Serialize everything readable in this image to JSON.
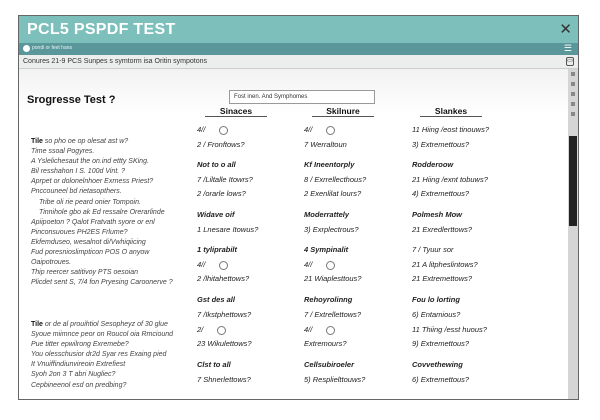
{
  "window": {
    "title": "PCL5 PSPDF TEST",
    "close_icon": "close-icon",
    "subbar_label": "pondi or feet hans",
    "menu_icon": "hamburger-icon"
  },
  "breadcrumb": {
    "text": "Conures 21-9 PCS Sunpes s symtorm isa Oritin sympotons",
    "icon": "save-icon"
  },
  "page": {
    "title": "Srogresse Test ?",
    "search_value": "Fost inen. And Symphomes"
  },
  "intro": {
    "lead": "Tile",
    "lines": [
      "so pho oe op olesat ast w?",
      "Time ssoal Pogyres.",
      "A Yslelichesaut the on.ind ettty SKing.",
      "Bil resshahon I S. 100d Vint. ?",
      "Aprpet or dolonelnhoer Exrness Priest?",
      "Pnccouneel bd rietasopthers.",
      "Tribe oli rie peard onier Tompoin.",
      "Tinnihole gbo ak Ed ressalre Orerarlinde",
      "Apiipoeton ? Qalot Fratvath syore or enl",
      "Pinconsuoues PH2ES Frlume?",
      "Ekfemduseo, wesalnot di/Vwhiqiicing",
      "Fud poresnioslimpticon POS O anyow",
      "Oaipotroues.",
      "Thip reercer satitivoy PTS oesoian",
      "Plicdet sent S, 7/4 fon Pryesing Caroonerve ?"
    ]
  },
  "outro": {
    "lead": "Tile",
    "lines": [
      "or de al prouihtiol Sesopheyz of 30 glue",
      "Syoue miimnce peor on Roucol oia Rmciound",
      "Pue titter epwilrong Exremebe?",
      "You olesschusior dr2d Syar res Exaing pied",
      "It Vnuiffindiunvireoin Extrefiest",
      "Syoh 2on 3 T abri Nugliec?",
      "Cepbineenol esd on predbing?"
    ]
  },
  "columns": [
    {
      "header": "Sinaces",
      "rows": [
        {
          "type": "radio",
          "text": "4//"
        },
        {
          "type": "item",
          "text": "2 / Fronftows?"
        },
        {
          "type": "group",
          "text": "Not to o all"
        },
        {
          "type": "item",
          "text": "7 /Liltalle Itowrs?"
        },
        {
          "type": "item",
          "text": "2 /orarle lows?"
        },
        {
          "type": "group",
          "text": "Widave oif"
        },
        {
          "type": "item",
          "text": "1 Lnesare Itowus?"
        },
        {
          "type": "group",
          "text": "1 tyliprabilt"
        },
        {
          "type": "radio",
          "text": "4//"
        },
        {
          "type": "item",
          "text": "2 /lhitahettows?"
        },
        {
          "type": "group",
          "text": "Gst des all"
        },
        {
          "type": "item",
          "text": "7 /Ikstphettows?"
        },
        {
          "type": "radio",
          "text": "2/"
        },
        {
          "type": "item",
          "text": "23 Wikulettows?"
        },
        {
          "type": "group",
          "text": "Clst to all"
        },
        {
          "type": "item",
          "text": "7 Shnerlettows?"
        }
      ]
    },
    {
      "header": "Skilnure",
      "rows": [
        {
          "type": "radio",
          "text": "4//"
        },
        {
          "type": "item",
          "text": "7 Werraltoun"
        },
        {
          "type": "group",
          "text": "Kf Ineentorply"
        },
        {
          "type": "item",
          "text": "8 / Exrrellecthous?"
        },
        {
          "type": "item",
          "text": "2 Exenlilat lours?"
        },
        {
          "type": "group",
          "text": "Moderrattely"
        },
        {
          "type": "item",
          "text": "3) Exrplectrous?"
        },
        {
          "type": "group",
          "text": "4 Sympinalit"
        },
        {
          "type": "radio",
          "text": "4//"
        },
        {
          "type": "item",
          "text": "21 Wiaplesttous?"
        },
        {
          "type": "group",
          "text": "Rehoyrolinng"
        },
        {
          "type": "item",
          "text": "7 / Extrellettows?"
        },
        {
          "type": "radio",
          "text": "4//"
        },
        {
          "type": "item",
          "text": "Extremours?"
        },
        {
          "type": "group",
          "text": "Cellsubiroeler"
        },
        {
          "type": "item",
          "text": "5) Resplielttouws?"
        }
      ]
    },
    {
      "header": "Slankes",
      "rows": [
        {
          "type": "item",
          "text": "11 Hiing /eost tinouws?"
        },
        {
          "type": "item",
          "text": "3) Extremettous?"
        },
        {
          "type": "group",
          "text": "Rodderoow"
        },
        {
          "type": "item",
          "text": "21 Hiing /exnt tobuws?"
        },
        {
          "type": "item",
          "text": "4) Extremettous?"
        },
        {
          "type": "group",
          "text": "Polmesh Mow"
        },
        {
          "type": "item",
          "text": "21 Exredlerttows?"
        },
        {
          "type": "item",
          "text": "7 / Tyuur sor"
        },
        {
          "type": "item",
          "text": "21 A litpheslintows?"
        },
        {
          "type": "item",
          "text": "21 Extremettows?"
        },
        {
          "type": "group",
          "text": "Fou lo lorting"
        },
        {
          "type": "item",
          "text": "6) Entamious?"
        },
        {
          "type": "item",
          "text": "11 Thiing /esst huous?"
        },
        {
          "type": "item",
          "text": "9) Extremettous?"
        },
        {
          "type": "group",
          "text": "Covvethewing"
        },
        {
          "type": "item",
          "text": "6) Extremettous?"
        }
      ]
    }
  ]
}
